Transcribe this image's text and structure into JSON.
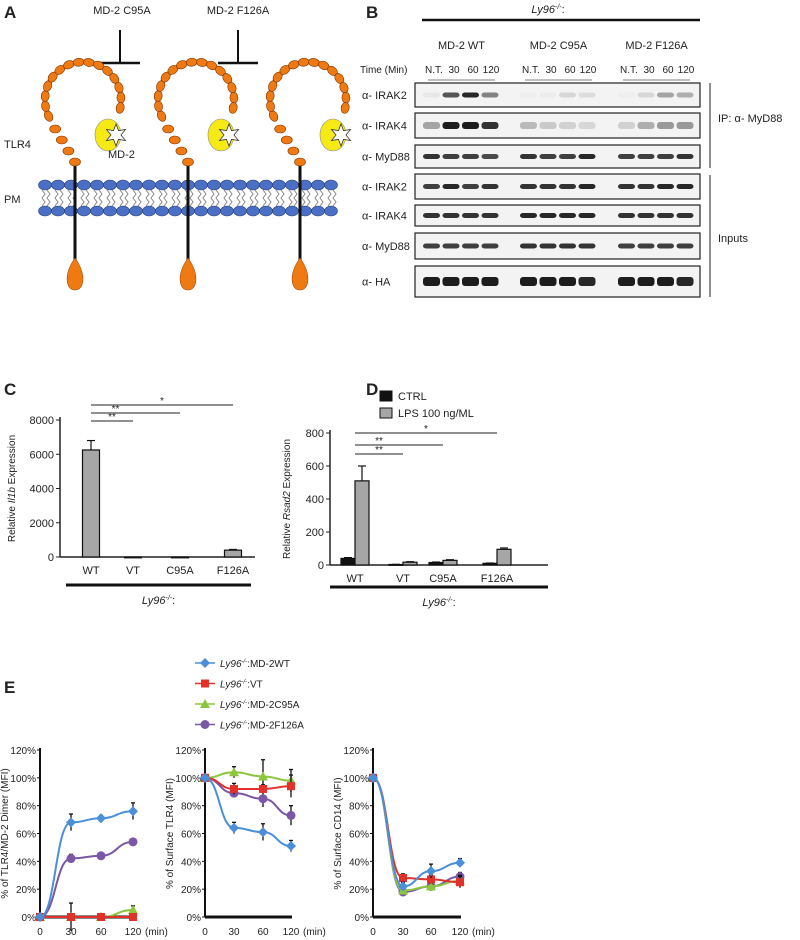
{
  "panels": {
    "a": {
      "letter": "A",
      "mutant1": "MD-2 C95A",
      "mutant2": "MD-2 F126A",
      "tlr4": "TLR4",
      "md2": "MD-2",
      "pm": "PM",
      "colors": {
        "receptor": "#f07a12",
        "md2": "#f5ea14",
        "membrane": "#4a6fc4"
      }
    },
    "b": {
      "letter": "B",
      "genotype": "Ly96",
      "genotype_sup": "-/-",
      "genotype_suffix": ":",
      "groups": [
        "MD-2 WT",
        "MD-2 C95A",
        "MD-2 F126A"
      ],
      "time_label": "Time (Min)",
      "times": [
        "N.T.",
        "30",
        "60",
        "120"
      ],
      "ip_label": "IP: α- MyD88",
      "inputs_label": "Inputs",
      "rows": [
        {
          "label": "α- IRAK2",
          "bands": [
            [
              0.05,
              0.7,
              0.9,
              0.5
            ],
            [
              0.02,
              0.03,
              0.12,
              0.1
            ],
            [
              0.02,
              0.12,
              0.35,
              0.3
            ]
          ]
        },
        {
          "label": "α- IRAK4",
          "bands": [
            [
              0.35,
              0.95,
              0.95,
              0.85
            ],
            [
              0.25,
              0.18,
              0.15,
              0.12
            ],
            [
              0.15,
              0.3,
              0.4,
              0.4
            ]
          ]
        },
        {
          "label": "α- MyD88",
          "bands": [
            [
              0.85,
              0.8,
              0.8,
              0.75
            ],
            [
              0.85,
              0.8,
              0.8,
              0.9
            ],
            [
              0.8,
              0.8,
              0.8,
              0.85
            ]
          ]
        },
        {
          "label": "α- IRAK2",
          "bands": [
            [
              0.8,
              0.9,
              0.8,
              0.85
            ],
            [
              0.85,
              0.85,
              0.85,
              0.9
            ],
            [
              0.85,
              0.85,
              0.9,
              0.9
            ]
          ]
        },
        {
          "label": "α- IRAK4",
          "bands": [
            [
              0.85,
              0.85,
              0.85,
              0.85
            ],
            [
              0.9,
              0.9,
              0.9,
              0.9
            ],
            [
              0.85,
              0.85,
              0.85,
              0.85
            ]
          ]
        },
        {
          "label": "α- MyD88",
          "bands": [
            [
              0.8,
              0.8,
              0.8,
              0.8
            ],
            [
              0.85,
              0.85,
              0.85,
              0.85
            ],
            [
              0.8,
              0.8,
              0.8,
              0.8
            ]
          ]
        },
        {
          "label": "α- HA",
          "bands": [
            [
              0.95,
              0.95,
              0.95,
              0.95
            ],
            [
              0.95,
              0.95,
              0.95,
              0.9
            ],
            [
              0.95,
              0.95,
              0.95,
              0.9
            ]
          ]
        }
      ]
    },
    "c": {
      "letter": "C",
      "genotype": "Ly96",
      "genotype_sup": "-/-",
      "genotype_suffix": ":"
    },
    "d": {
      "letter": "D",
      "genotype": "Ly96",
      "genotype_sup": "-/-",
      "genotype_suffix": ":"
    },
    "e": {
      "letter": "E"
    }
  },
  "chart_data": [
    {
      "id": "C",
      "type": "bar",
      "ylabel_pre": "Relative ",
      "ylabel_italic": "Il1b",
      "ylabel_post": " Expression",
      "categories": [
        "WT",
        "VT",
        "C95A",
        "F126A"
      ],
      "values": [
        6250,
        0,
        0,
        400
      ],
      "errors": [
        550,
        0,
        0,
        40
      ],
      "ylim": [
        0,
        8000
      ],
      "yticks": [
        "0",
        "2000",
        "4000",
        "6000",
        "8000"
      ],
      "bar_color": "#a6a6a6",
      "significance": [
        {
          "from": "WT",
          "to": "VT",
          "label": "**"
        },
        {
          "from": "WT",
          "to": "C95A",
          "label": "**"
        },
        {
          "from": "WT",
          "to": "F126A",
          "label": "*"
        }
      ]
    },
    {
      "id": "D",
      "type": "bar",
      "ylabel_pre": "Relative ",
      "ylabel_italic": "Rsad2",
      "ylabel_post": " Expression",
      "categories": [
        "WT",
        "VT",
        "C95A",
        "F126A"
      ],
      "series": [
        {
          "name": "CTRL",
          "values": [
            40,
            3,
            15,
            10
          ],
          "errors": [
            5,
            1,
            3,
            2
          ],
          "color": "#111111"
        },
        {
          "name": "LPS 100 ng/ML",
          "values": [
            510,
            17,
            28,
            95
          ],
          "errors": [
            90,
            3,
            4,
            8
          ],
          "color": "#a6a6a6"
        }
      ],
      "ylim": [
        0,
        800
      ],
      "yticks": [
        "0",
        "200",
        "400",
        "600",
        "800"
      ],
      "legend": "top",
      "significance": [
        {
          "from": "WT",
          "to": "VT",
          "label": "**"
        },
        {
          "from": "WT",
          "to": "C95A",
          "label": "**"
        },
        {
          "from": "WT",
          "to": "F126A",
          "label": "*"
        }
      ]
    },
    {
      "id": "E1",
      "type": "line",
      "ylabel": "% of TLR4/MD-2 Dimer (MFI)",
      "x": [
        "0",
        "30",
        "60",
        "120"
      ],
      "xunit": "(min)",
      "ylim": [
        0,
        120
      ],
      "yticks": [
        "0%",
        "20%",
        "40%",
        "60%",
        "80%",
        "100%",
        "120%"
      ],
      "series": [
        {
          "key": "wt",
          "values": [
            0,
            68,
            71,
            76
          ],
          "errors": [
            0,
            6,
            2,
            6
          ]
        },
        {
          "key": "vt",
          "values": [
            0,
            0,
            0,
            0
          ],
          "errors": [
            0,
            0,
            0,
            0
          ]
        },
        {
          "key": "c95a",
          "values": [
            0,
            0,
            0,
            5
          ],
          "errors": [
            0,
            10,
            0,
            3
          ]
        },
        {
          "key": "f126a",
          "values": [
            0,
            42,
            44,
            54
          ],
          "errors": [
            0,
            3,
            2,
            2
          ]
        }
      ]
    },
    {
      "id": "E2",
      "type": "line",
      "ylabel": "% of Surface TLR4 (MFI)",
      "x": [
        "0",
        "30",
        "60",
        "120"
      ],
      "xunit": "(min)",
      "ylim": [
        0,
        120
      ],
      "yticks": [
        "0%",
        "20%",
        "40%",
        "60%",
        "80%",
        "100%",
        "120%"
      ],
      "series": [
        {
          "key": "wt",
          "values": [
            100,
            64,
            61,
            51
          ],
          "errors": [
            0,
            4,
            6,
            4
          ]
        },
        {
          "key": "vt",
          "values": [
            100,
            92,
            92,
            94
          ],
          "errors": [
            0,
            4,
            3,
            8
          ]
        },
        {
          "key": "c95a",
          "values": [
            100,
            104,
            101,
            98
          ],
          "errors": [
            0,
            4,
            12,
            8
          ]
        },
        {
          "key": "f126a",
          "values": [
            100,
            89,
            85,
            73
          ],
          "errors": [
            0,
            3,
            6,
            7
          ]
        }
      ]
    },
    {
      "id": "E3",
      "type": "line",
      "ylabel": "% of Surface CD14 (MFI)",
      "x": [
        "0",
        "30",
        "60",
        "120"
      ],
      "xunit": "(min)",
      "ylim": [
        0,
        120
      ],
      "yticks": [
        "0%",
        "20%",
        "40%",
        "60%",
        "80%",
        "100%",
        "120%"
      ],
      "series": [
        {
          "key": "wt",
          "values": [
            100,
            22,
            33,
            39
          ],
          "errors": [
            0,
            3,
            5,
            3
          ]
        },
        {
          "key": "vt",
          "values": [
            100,
            28,
            27,
            25
          ],
          "errors": [
            0,
            3,
            3,
            4
          ]
        },
        {
          "key": "c95a",
          "values": [
            100,
            19,
            22,
            26
          ],
          "errors": [
            0,
            2,
            2,
            4
          ]
        },
        {
          "key": "f126a",
          "values": [
            100,
            18,
            22,
            29
          ],
          "errors": [
            0,
            2,
            2,
            3
          ]
        }
      ]
    }
  ],
  "legend_e": [
    {
      "key": "wt",
      "genotype": "Ly96",
      "sup": "-/-",
      "label": ":MD-2WT",
      "color": "#4a8fd8",
      "marker": "diamond"
    },
    {
      "key": "vt",
      "genotype": "Ly96",
      "sup": "-/-",
      "label": ":VT",
      "color": "#e0322a",
      "marker": "square"
    },
    {
      "key": "c95a",
      "genotype": "Ly96",
      "sup": "-/-",
      "label": ":MD-2C95A",
      "color": "#8cc63e",
      "marker": "triangle"
    },
    {
      "key": "f126a",
      "genotype": "Ly96",
      "sup": "-/-",
      "label": ":MD-2F126A",
      "color": "#7b58a6",
      "marker": "circle"
    }
  ]
}
